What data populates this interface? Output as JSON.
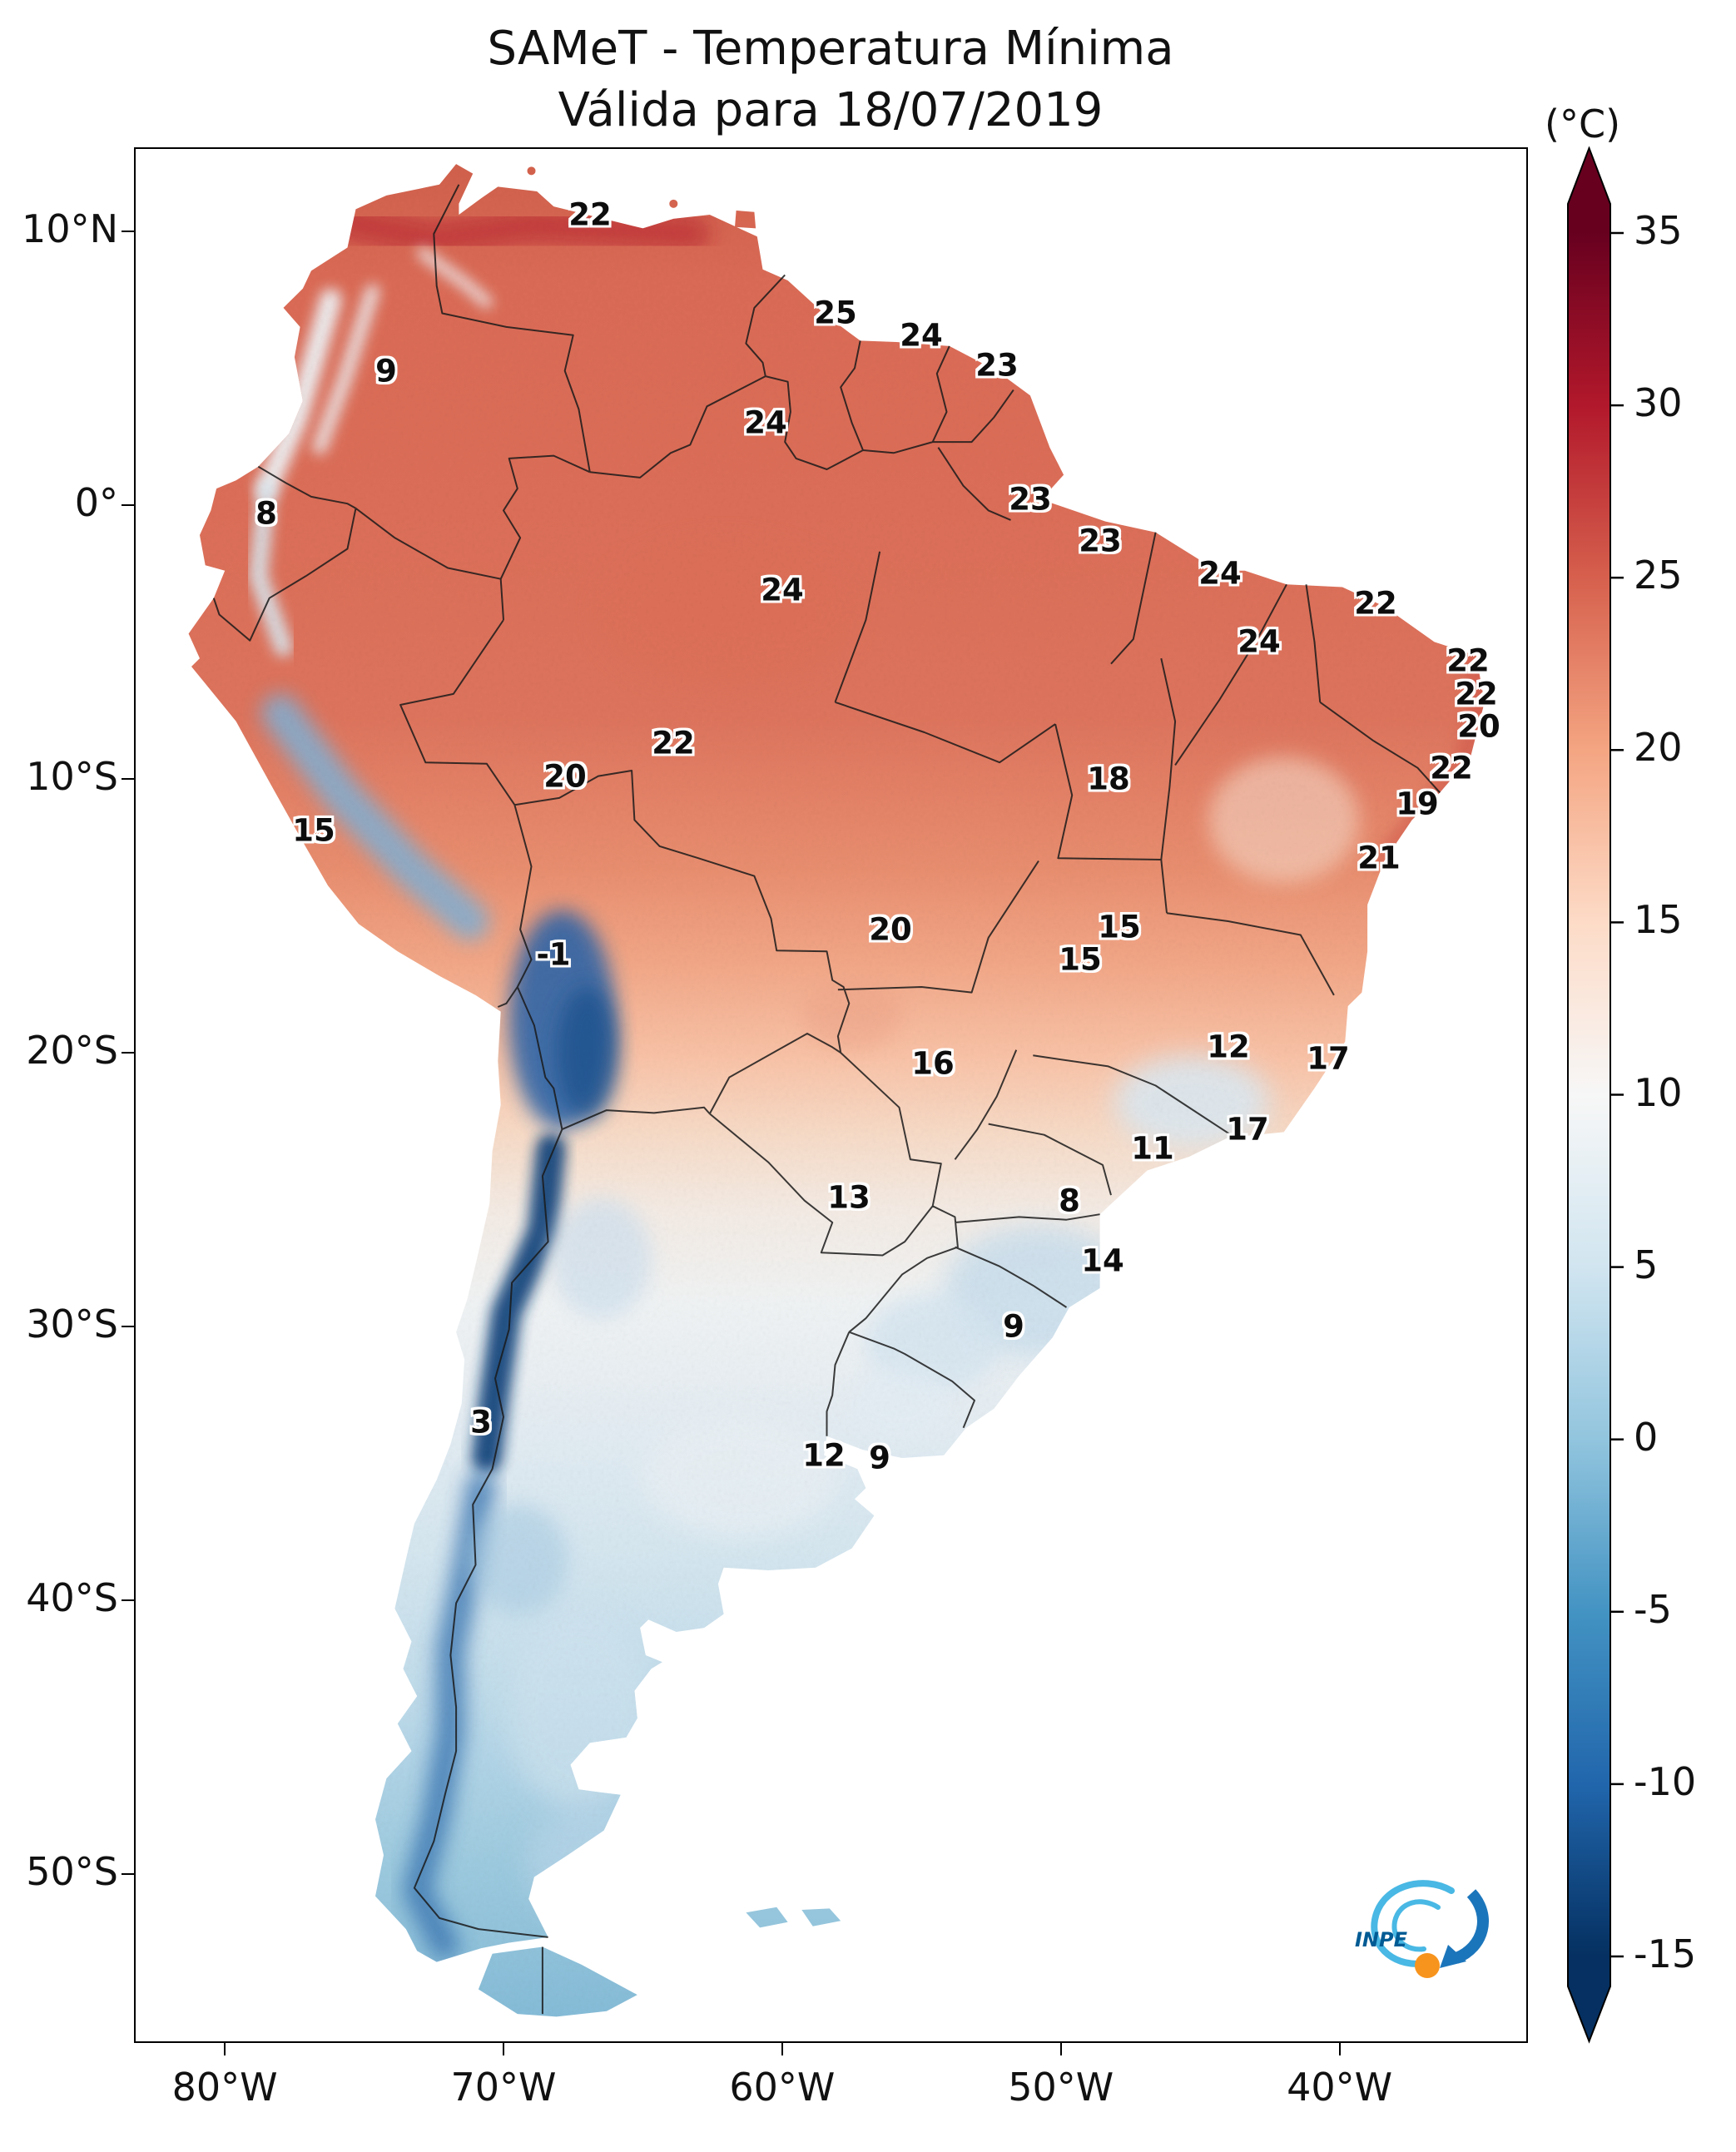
{
  "title": {
    "line1": "SAMeT - Temperatura Mínima",
    "line2": "Válida para 18/07/2019"
  },
  "colorbar": {
    "unit": "(°C)",
    "tick_labels": [
      "35",
      "30",
      "25",
      "20",
      "15",
      "10",
      "5",
      "0",
      "-5",
      "-10",
      "-15"
    ],
    "tick_values": [
      35,
      30,
      25,
      20,
      15,
      10,
      5,
      0,
      -5,
      -10,
      -15
    ],
    "colors": {
      "35": "#67001f",
      "30": "#b2182b",
      "25": "#d6604d",
      "20": "#f4a582",
      "15": "#fddbc7",
      "10": "#f7f7f7",
      "5": "#d1e5f0",
      "0": "#92c5de",
      "-5": "#4393c3",
      "-10": "#2166ac",
      "-15": "#053061"
    }
  },
  "axes": {
    "x_ticks": [
      {
        "label": "80°W",
        "lon": -80
      },
      {
        "label": "70°W",
        "lon": -70
      },
      {
        "label": "60°W",
        "lon": -60
      },
      {
        "label": "50°W",
        "lon": -50
      },
      {
        "label": "40°W",
        "lon": -40
      }
    ],
    "y_ticks": [
      {
        "label": "10°N",
        "lat": 10
      },
      {
        "label": "0°",
        "lat": 0
      },
      {
        "label": "10°S",
        "lat": -10
      },
      {
        "label": "20°S",
        "lat": -20
      },
      {
        "label": "30°S",
        "lat": -30
      },
      {
        "label": "40°S",
        "lat": -40
      },
      {
        "label": "50°S",
        "lat": -50
      }
    ]
  },
  "logo": {
    "name": "INPE"
  },
  "chart_data": {
    "type": "heatmap",
    "title": "SAMeT - Temperatura Mínima",
    "subtitle": "Válida para 18/07/2019",
    "unit": "°C",
    "region": "South America",
    "colormap": "RdBu_r",
    "colorbar_range": [
      -15,
      35
    ],
    "colorbar_tick_step": 5,
    "lon_range": [
      -83.2,
      -33.3
    ],
    "lat_range": [
      -56.1,
      13.0
    ],
    "stations": [
      {
        "value": 22,
        "lon": -66.9,
        "lat": 10.6
      },
      {
        "value": 25,
        "lon": -58.1,
        "lat": 7.0
      },
      {
        "value": 24,
        "lon": -55.0,
        "lat": 6.2
      },
      {
        "value": 23,
        "lon": -52.3,
        "lat": 5.1
      },
      {
        "value": 9,
        "lon": -74.2,
        "lat": 4.9
      },
      {
        "value": 24,
        "lon": -60.6,
        "lat": 3.0
      },
      {
        "value": 8,
        "lon": -78.5,
        "lat": -0.3
      },
      {
        "value": 23,
        "lon": -51.1,
        "lat": 0.2
      },
      {
        "value": 23,
        "lon": -48.6,
        "lat": -1.3
      },
      {
        "value": 24,
        "lon": -60.0,
        "lat": -3.1
      },
      {
        "value": 24,
        "lon": -44.3,
        "lat": -2.5
      },
      {
        "value": 22,
        "lon": -38.7,
        "lat": -3.6
      },
      {
        "value": 24,
        "lon": -42.9,
        "lat": -5.0
      },
      {
        "value": 22,
        "lon": -35.4,
        "lat": -5.7
      },
      {
        "value": 22,
        "lon": -35.1,
        "lat": -6.9
      },
      {
        "value": 20,
        "lon": -35.0,
        "lat": -8.1
      },
      {
        "value": 22,
        "lon": -63.9,
        "lat": -8.7
      },
      {
        "value": 20,
        "lon": -67.8,
        "lat": -9.9
      },
      {
        "value": 18,
        "lon": -48.3,
        "lat": -10.0
      },
      {
        "value": 22,
        "lon": -36.0,
        "lat": -9.6
      },
      {
        "value": 19,
        "lon": -37.2,
        "lat": -10.9
      },
      {
        "value": 15,
        "lon": -76.8,
        "lat": -11.9
      },
      {
        "value": 21,
        "lon": -38.6,
        "lat": -12.9
      },
      {
        "value": -1,
        "lon": -68.2,
        "lat": -16.4
      },
      {
        "value": 20,
        "lon": -56.1,
        "lat": -15.5
      },
      {
        "value": 15,
        "lon": -47.9,
        "lat": -15.4
      },
      {
        "value": 15,
        "lon": -49.3,
        "lat": -16.6
      },
      {
        "value": 12,
        "lon": -44.0,
        "lat": -19.8
      },
      {
        "value": 17,
        "lon": -40.4,
        "lat": -20.2
      },
      {
        "value": 16,
        "lon": -54.6,
        "lat": -20.4
      },
      {
        "value": 17,
        "lon": -43.3,
        "lat": -22.8
      },
      {
        "value": 11,
        "lon": -46.7,
        "lat": -23.5
      },
      {
        "value": 13,
        "lon": -57.6,
        "lat": -25.3
      },
      {
        "value": 8,
        "lon": -49.7,
        "lat": -25.4
      },
      {
        "value": 14,
        "lon": -48.5,
        "lat": -27.6
      },
      {
        "value": 9,
        "lon": -51.7,
        "lat": -30.0
      },
      {
        "value": 3,
        "lon": -70.8,
        "lat": -33.5
      },
      {
        "value": 12,
        "lon": -58.5,
        "lat": -34.7
      },
      {
        "value": 9,
        "lon": -56.5,
        "lat": -34.8
      }
    ]
  }
}
